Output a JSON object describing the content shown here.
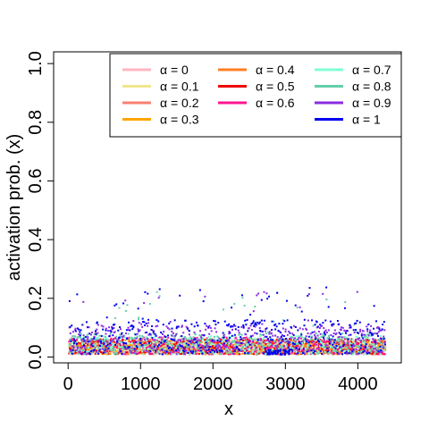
{
  "chart_data": {
    "type": "scatter",
    "xlabel": "x",
    "ylabel": "activation prob. (x)",
    "xlim": [
      -200,
      4600
    ],
    "ylim": [
      -0.02,
      1.04
    ],
    "x_ticks": [
      0,
      1000,
      2000,
      3000,
      4000
    ],
    "x_tick_labels": [
      "0",
      "1000",
      "2000",
      "3000",
      "4000"
    ],
    "y_ticks": [
      0.0,
      0.2,
      0.4,
      0.6,
      0.8,
      1.0
    ],
    "y_tick_labels": [
      "0.0",
      "0.2",
      "0.4",
      "0.6",
      "0.8",
      "1.0"
    ],
    "grid": false,
    "legend_position": "top-right",
    "legend_symbol": "α",
    "n_points": 4370,
    "series": [
      {
        "name": "0",
        "color": "#FFB6C1",
        "band_low": 0.01,
        "band_high": 0.05
      },
      {
        "name": "0.1",
        "color": "#F0E68C",
        "band_low": 0.012,
        "band_high": 0.055
      },
      {
        "name": "0.2",
        "color": "#FA8072",
        "band_low": 0.012,
        "band_high": 0.06
      },
      {
        "name": "0.3",
        "color": "#FFA500",
        "band_low": 0.012,
        "band_high": 0.06
      },
      {
        "name": "0.4",
        "color": "#FF7F24",
        "band_low": 0.012,
        "band_high": 0.065
      },
      {
        "name": "0.5",
        "color": "#EE0000",
        "band_low": 0.012,
        "band_high": 0.065
      },
      {
        "name": "0.6",
        "color": "#FF1493",
        "band_low": 0.012,
        "band_high": 0.07
      },
      {
        "name": "0.7",
        "color": "#7FFFD4",
        "band_low": 0.012,
        "band_high": 0.075
      },
      {
        "name": "0.8",
        "color": "#66CDAA",
        "band_low": 0.012,
        "band_high": 0.085
      },
      {
        "name": "0.9",
        "color": "#8A2BE2",
        "band_low": 0.012,
        "band_high": 0.11
      },
      {
        "name": "1",
        "color": "#0000EE",
        "band_low": 0.012,
        "band_high": 0.13
      }
    ],
    "max_value": 0.27,
    "low_cluster": {
      "x_range": [
        2700,
        3050
      ],
      "y_range": [
        0.01,
        0.03
      ]
    }
  }
}
